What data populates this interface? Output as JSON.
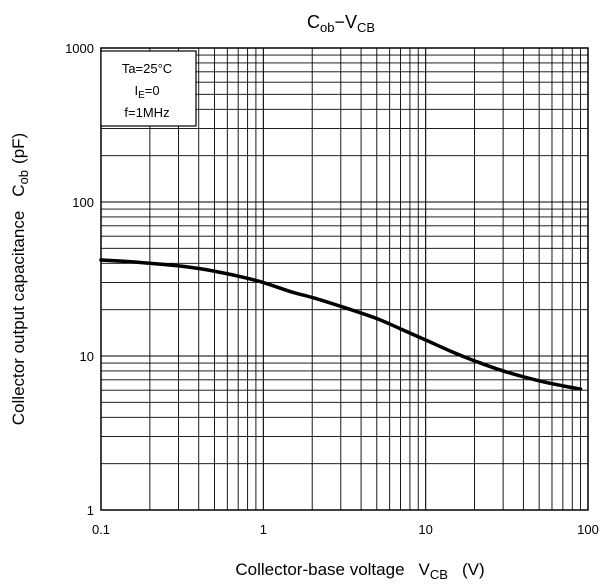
{
  "chart_data": {
    "type": "line",
    "title": {
      "main": "C",
      "main_sub": "ob",
      "dash": "−",
      "var": "V",
      "var_sub": "CB"
    },
    "xlabel": {
      "text": "Collector-base voltage",
      "var": "V",
      "var_sub": "CB",
      "unit": "(V)"
    },
    "ylabel": {
      "text": "Collector output capacitance",
      "var": "C",
      "var_sub": "ob",
      "unit": "(pF)"
    },
    "x_scale": "log",
    "y_scale": "log",
    "xlim": [
      0.1,
      100
    ],
    "ylim": [
      1,
      1000
    ],
    "grid": true,
    "x_ticks": [
      {
        "value": 0.1,
        "label": "0.1"
      },
      {
        "value": 1,
        "label": "1"
      },
      {
        "value": 10,
        "label": "10"
      },
      {
        "value": 100,
        "label": "100"
      }
    ],
    "y_ticks": [
      {
        "value": 1,
        "label": "1"
      },
      {
        "value": 10,
        "label": "10"
      },
      {
        "value": 100,
        "label": "100"
      },
      {
        "value": 1000,
        "label": "1000"
      }
    ],
    "conditions": [
      {
        "text": "Ta=25°C"
      },
      {
        "main": "I",
        "sub": "E",
        "rest": "=0"
      },
      {
        "text": "f=1MHz"
      }
    ],
    "series": [
      {
        "x": [
          0.1,
          0.15,
          0.2,
          0.3,
          0.4,
          0.5,
          0.7,
          1,
          1.5,
          2,
          3,
          5,
          7,
          10,
          15,
          20,
          30,
          50,
          70,
          90
        ],
        "y": [
          42,
          41,
          40,
          38.5,
          37,
          35.5,
          33,
          30,
          26,
          24,
          21,
          17.5,
          15,
          12.7,
          10.5,
          9.3,
          8,
          6.9,
          6.4,
          6.1
        ]
      }
    ]
  }
}
